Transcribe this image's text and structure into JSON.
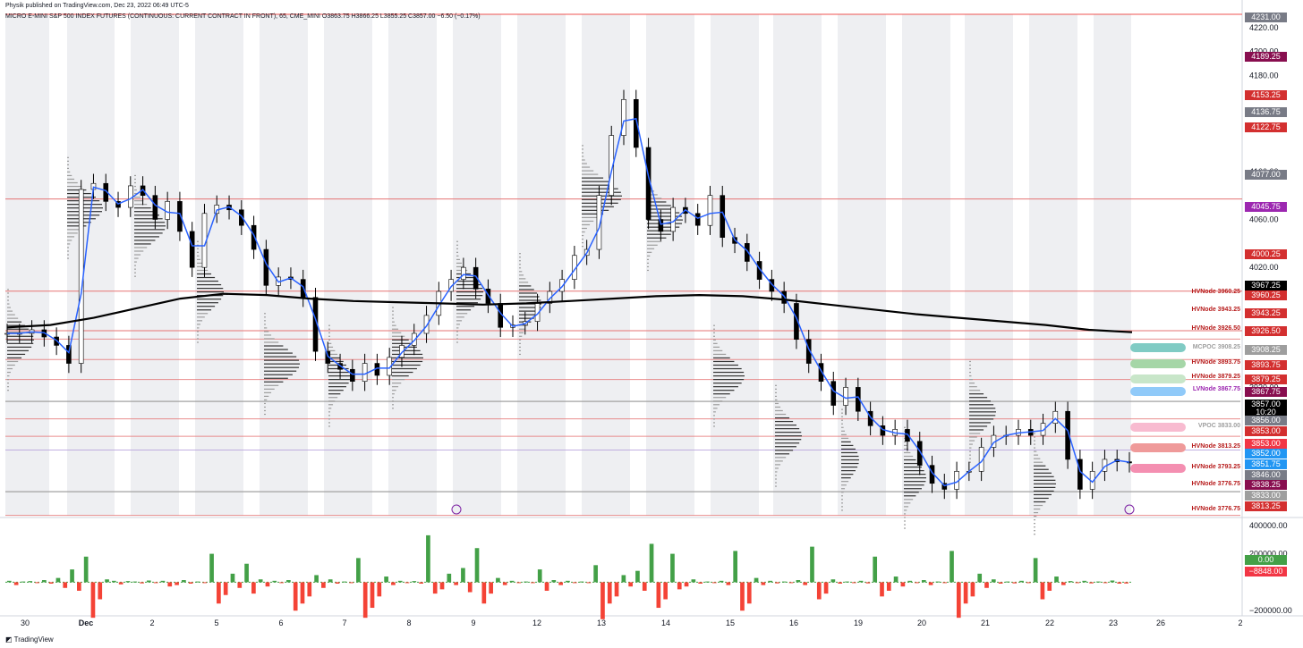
{
  "header": {
    "publisher": "Physik published on TradingView.com, Dec 23, 2022 06:49 UTC-5",
    "symbol_line": "MICRO E-MINI S&P 500 INDEX FUTURES (CONTINUOUS: CURRENT CONTRACT IN FRONT), 65, CME_MINI  O3863.75  H3866.25  L3855.25  C3857.00  −6.50 (−0.17%)"
  },
  "footer": {
    "brand": "TradingView"
  },
  "colors": {
    "up": "#26a69a",
    "down": "#ef5350",
    "vwap": "#2962ff",
    "ma": "#000000",
    "hvnode": "#b71c1c",
    "lvnode": "#9c27b0",
    "poc": "#9e9e9e",
    "vol_up": "#43a047",
    "vol_down": "#f44336",
    "session_shade": "#eeeff2"
  },
  "chart_data": [
    {
      "type": "candlestick",
      "title": "MICRO E-MINI S&P 500 INDEX FUTURES (CONTINUOUS: CURRENT CONTRACT IN FRONT), 65, CME_MINI",
      "x_tick_labels": [
        "30",
        "Dec",
        "2",
        "5",
        "6",
        "7",
        "8",
        "9",
        "12",
        "13",
        "14",
        "15",
        "16",
        "19",
        "20",
        "21",
        "22",
        "23",
        "26",
        "2"
      ],
      "ylim": [
        3813,
        4231
      ],
      "y_ticks": [
        3920,
        3940,
        3960,
        3980,
        4000,
        4020,
        4040,
        4060,
        4080,
        4100,
        4120,
        4140,
        4160,
        4180,
        4200,
        4220
      ],
      "y_ticks_shown": [
        3920,
        3980,
        4000,
        4020,
        4060,
        4100,
        4180,
        4200,
        4220
      ],
      "price_path": [
        3965,
        3965,
        3968,
        3962,
        3955,
        3940,
        4085,
        4090,
        4075,
        4070,
        4088,
        4080,
        4060,
        4075,
        4050,
        4020,
        4065,
        4072,
        4068,
        4055,
        4035,
        4005,
        4012,
        4010,
        3995,
        3950,
        3940,
        3935,
        3925,
        3940,
        3930,
        3945,
        3955,
        3965,
        3980,
        4000,
        4010,
        4020,
        4002,
        3990,
        3970,
        3972,
        3975,
        3990,
        4000,
        4010,
        4030,
        4035,
        4080,
        4130,
        4160,
        4120,
        4060,
        4050,
        4070,
        4065,
        4055,
        4080,
        4045,
        4040,
        4025,
        4010,
        4000,
        3990,
        3960,
        3940,
        3925,
        3905,
        3920,
        3900,
        3888,
        3880,
        3885,
        3875,
        3855,
        3840,
        3835,
        3850,
        3850,
        3870,
        3880,
        3880,
        3885,
        3880,
        3890,
        3900,
        3860,
        3835,
        3850,
        3860,
        3858,
        3857
      ],
      "moving_average": [
        3970,
        3972,
        3978,
        3986,
        3994,
        3998,
        3997,
        3994,
        3992,
        3991,
        3990,
        3989,
        3990,
        3992,
        3994,
        3996,
        3997,
        3996,
        3993,
        3989,
        3985,
        3981,
        3978,
        3975,
        3972,
        3968,
        3966
      ],
      "horizontal_levels": [
        {
          "label": "HVNode 3960.25",
          "value": 3960.25,
          "kind": "hvnode"
        },
        {
          "label": "HVNode 3943.25",
          "value": 3943.25,
          "kind": "hvnode"
        },
        {
          "label": "HVNode 3926.50",
          "value": 3926.5,
          "kind": "hvnode"
        },
        {
          "label": "MCPOC 3908.25",
          "value": 3908.25,
          "kind": "poc"
        },
        {
          "label": "HVNode 3893.75",
          "value": 3893.75,
          "kind": "hvnode"
        },
        {
          "label": "HVNode 3879.25",
          "value": 3879.25,
          "kind": "hvnode"
        },
        {
          "label": "LVNode 3867.75",
          "value": 3867.75,
          "kind": "lvnode"
        },
        {
          "label": "VPOC 3833.00",
          "value": 3833.0,
          "kind": "poc"
        },
        {
          "label": "HVNode 3813.25",
          "value": 3813.25,
          "kind": "hvnode"
        },
        {
          "label": "HVNode 3793.25",
          "value": 3793.25,
          "kind": "hvnode"
        },
        {
          "label": "HVNode 3776.75",
          "value": 3776.75,
          "kind": "hvnode"
        },
        {
          "label": "HVNode 3776.75",
          "value": 3776.75,
          "kind": "hvnode"
        }
      ],
      "price_tags": [
        {
          "text": "4231.00",
          "bg": "#787b86"
        },
        {
          "text": "4189.25",
          "bg": "#880e4f"
        },
        {
          "text": "4153.25",
          "bg": "#d32f2f"
        },
        {
          "text": "4136.75",
          "bg": "#787b86"
        },
        {
          "text": "4122.75",
          "bg": "#d32f2f"
        },
        {
          "text": "4077.00",
          "bg": "#787b86"
        },
        {
          "text": "4045.75",
          "bg": "#9c27b0"
        },
        {
          "text": "4000.25",
          "bg": "#d32f2f"
        },
        {
          "text": "3967.25",
          "bg": "#000000"
        },
        {
          "text": "3960.25",
          "bg": "#d32f2f"
        },
        {
          "text": "3943.25",
          "bg": "#d32f2f"
        },
        {
          "text": "3926.50",
          "bg": "#d32f2f"
        },
        {
          "text": "3908.25",
          "bg": "#9e9e9e"
        },
        {
          "text": "3893.75",
          "bg": "#d32f2f"
        },
        {
          "text": "3879.25",
          "bg": "#d32f2f"
        },
        {
          "text": "3867.75",
          "bg": "#880e4f"
        },
        {
          "text": "3857.00",
          "bg": "#000000"
        },
        {
          "text": "10:20",
          "bg": "#000000"
        },
        {
          "text": "3856.00",
          "bg": "#787b86"
        },
        {
          "text": "3853.00",
          "bg": "#d32f2f"
        },
        {
          "text": "3853.00",
          "bg": "#f23645"
        },
        {
          "text": "3852.00",
          "bg": "#2196f3"
        },
        {
          "text": "3851.75",
          "bg": "#2196f3"
        },
        {
          "text": "3846.00",
          "bg": "#787b86"
        },
        {
          "text": "3838.25",
          "bg": "#880e4f"
        },
        {
          "text": "3833.00",
          "bg": "#9e9e9e"
        },
        {
          "text": "3813.25",
          "bg": "#d32f2f"
        }
      ]
    },
    {
      "type": "bar",
      "title": "",
      "y_ticks": [
        "400000.00",
        "200000.00",
        "−200000.00"
      ],
      "ylim": [
        -230000,
        430000
      ],
      "last_values": [
        {
          "text": "0.00",
          "bg": "#43a047"
        },
        {
          "text": "−8848.00",
          "bg": "#f23645"
        }
      ],
      "values": [
        10000,
        -20000,
        5000,
        8000,
        -5000,
        15000,
        -10000,
        30000,
        -40000,
        90000,
        -60000,
        180000,
        -250000,
        -120000,
        20000,
        10000,
        -15000,
        8000,
        5000,
        -8000,
        12000,
        -5000,
        10000,
        -30000,
        -20000,
        15000,
        -10000,
        5000,
        -5000,
        200000,
        -150000,
        -90000,
        60000,
        -40000,
        130000,
        -80000,
        20000,
        -30000,
        10000,
        -5000,
        15000,
        -200000,
        -150000,
        -100000,
        50000,
        -40000,
        20000,
        -10000,
        5000,
        -5000,
        170000,
        -250000,
        -180000,
        -100000,
        40000,
        -20000,
        10000,
        -5000,
        8000,
        -10000,
        330000,
        -80000,
        -50000,
        60000,
        -20000,
        100000,
        -70000,
        240000,
        -150000,
        -80000,
        30000,
        -20000,
        10000,
        -5000,
        5000,
        -5000,
        90000,
        -60000,
        15000,
        -20000,
        10000,
        -5000,
        5000,
        -3000,
        120000,
        -260000,
        -150000,
        -100000,
        50000,
        -30000,
        80000,
        -60000,
        270000,
        -180000,
        -120000,
        200000,
        -50000,
        -30000,
        20000,
        -10000,
        5000,
        -5000,
        10000,
        -20000,
        220000,
        -200000,
        -150000,
        30000,
        -20000,
        10000,
        -8000,
        5000,
        -5000,
        15000,
        -20000,
        250000,
        -120000,
        -80000,
        20000,
        -10000,
        5000,
        -5000,
        10000,
        -8000,
        180000,
        -100000,
        -60000,
        40000,
        -30000,
        10000,
        -5000,
        15000,
        -20000,
        5000,
        -5000,
        220000,
        -250000,
        -150000,
        -100000,
        60000,
        -40000,
        20000,
        -10000,
        5000,
        -8000,
        10000,
        -5000,
        170000,
        -120000,
        -60000,
        40000,
        -20000,
        8000,
        -5000,
        10000,
        -8000,
        5000,
        -3000,
        12000,
        -10000,
        -8848
      ]
    }
  ]
}
